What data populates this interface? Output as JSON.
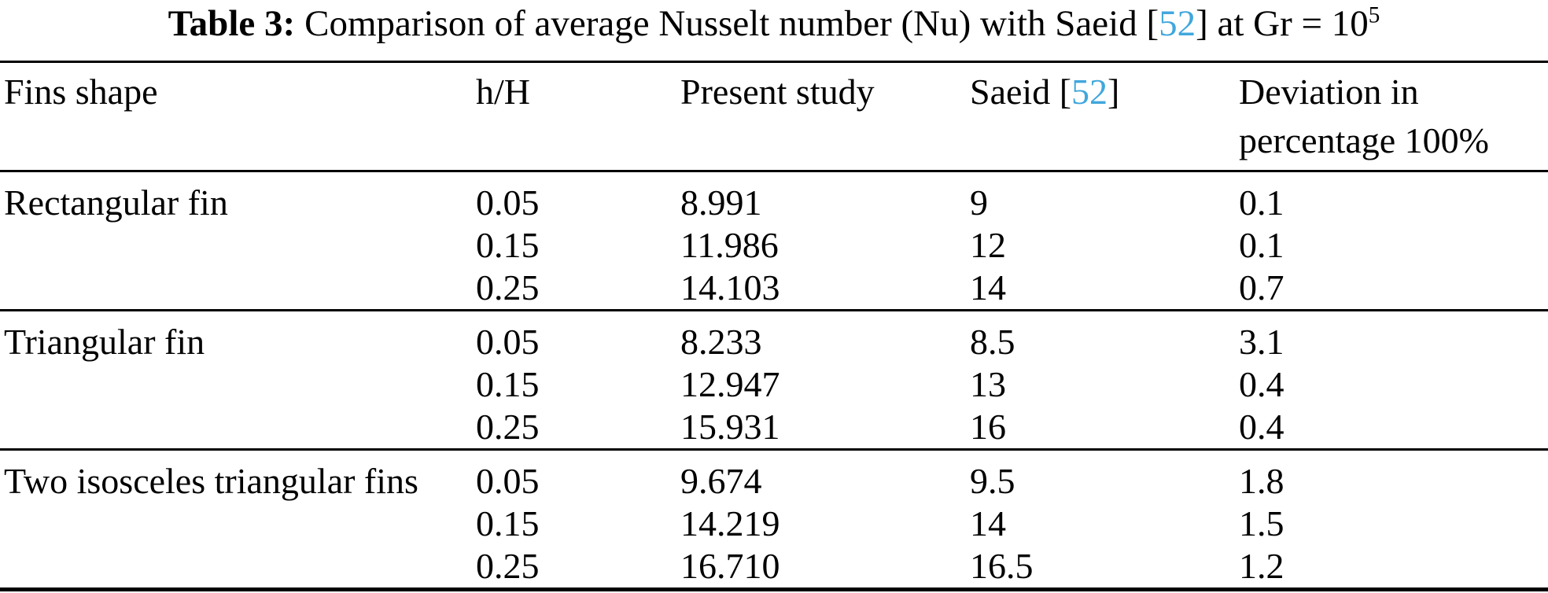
{
  "accent_color": "#41a7dc",
  "caption": {
    "label": "Table 3:",
    "pre": "Comparison of average Nusselt number (Nu) with Saeid [",
    "ref": "52",
    "mid": "] at Gr = 10",
    "exponent": "5"
  },
  "table": {
    "headers": {
      "fins_shape": "Fins shape",
      "h_H": "h/H",
      "present_study": "Present study",
      "saeid_pre": "Saeid [",
      "saeid_ref": "52",
      "saeid_post": "]",
      "deviation_line1": "Deviation in",
      "deviation_line2": "percentage 100%"
    },
    "groups": [
      {
        "shape": "Rectangular fin",
        "rows": [
          {
            "hH": "0.05",
            "present": "8.991",
            "saeid": "9",
            "deviation": "0.1"
          },
          {
            "hH": "0.15",
            "present": "11.986",
            "saeid": "12",
            "deviation": "0.1"
          },
          {
            "hH": "0.25",
            "present": "14.103",
            "saeid": "14",
            "deviation": "0.7"
          }
        ]
      },
      {
        "shape": "Triangular fin",
        "rows": [
          {
            "hH": "0.05",
            "present": "8.233",
            "saeid": "8.5",
            "deviation": "3.1"
          },
          {
            "hH": "0.15",
            "present": "12.947",
            "saeid": "13",
            "deviation": "0.4"
          },
          {
            "hH": "0.25",
            "present": "15.931",
            "saeid": "16",
            "deviation": "0.4"
          }
        ]
      },
      {
        "shape": "Two isosceles triangular fins",
        "rows": [
          {
            "hH": "0.05",
            "present": "9.674",
            "saeid": "9.5",
            "deviation": "1.8"
          },
          {
            "hH": "0.15",
            "present": "14.219",
            "saeid": "14",
            "deviation": "1.5"
          },
          {
            "hH": "0.25",
            "present": "16.710",
            "saeid": "16.5",
            "deviation": "1.2"
          }
        ]
      }
    ]
  }
}
